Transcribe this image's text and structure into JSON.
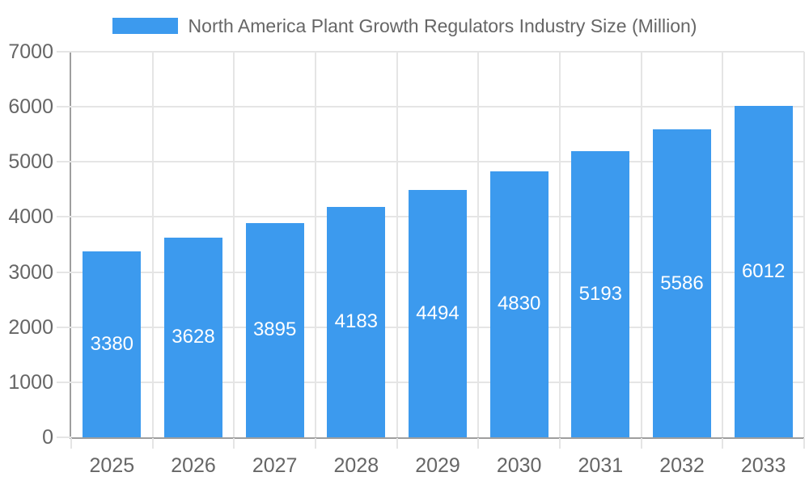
{
  "chart_data": {
    "type": "bar",
    "title": "North America Plant Growth Regulators Industry Size (Million)",
    "categories": [
      "2025",
      "2026",
      "2027",
      "2028",
      "2029",
      "2030",
      "2031",
      "2032",
      "2033"
    ],
    "values": [
      3380,
      3628,
      3895,
      4183,
      4494,
      4830,
      5193,
      5586,
      6012
    ],
    "xlabel": "",
    "ylabel": "",
    "ylim": [
      0,
      7000
    ],
    "yticks": [
      0,
      1000,
      2000,
      3000,
      4000,
      5000,
      6000,
      7000
    ],
    "grid": true,
    "legend_position": "top",
    "value_label_position": "inside-center",
    "colors": {
      "bar": "#3C9AEE",
      "value_label": "#FFFFFF",
      "axis_text": "#666666",
      "grid_line": "#E5E5E5",
      "axis_line": "#9E9E9E",
      "background": "#FFFFFF"
    }
  }
}
